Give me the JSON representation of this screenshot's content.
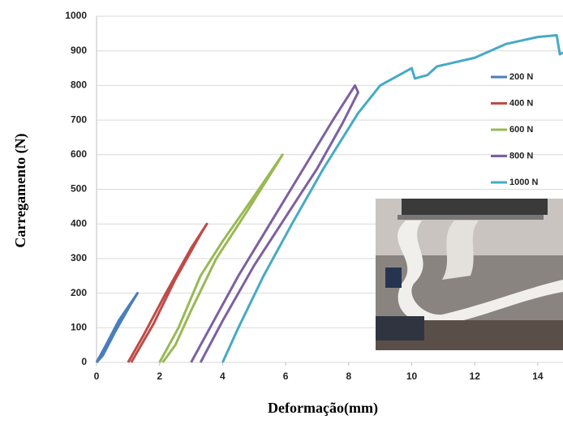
{
  "chart_data": {
    "type": "line",
    "x_label": "Deformação(mm)",
    "y_label": "Carregamento (N)",
    "xlim": [
      0,
      14.8
    ],
    "ylim": [
      0,
      1000
    ],
    "xticks": [
      0,
      2,
      4,
      6,
      8,
      10,
      12,
      14
    ],
    "yticks": [
      0,
      100,
      200,
      300,
      400,
      500,
      600,
      700,
      800,
      900,
      1000
    ],
    "grid": true,
    "legend": "upper right",
    "series": [
      {
        "name": "200 N",
        "color": "#4a7ebb",
        "x": [
          0,
          0.3,
          0.7,
          1.3,
          1.1,
          0.6,
          0.2,
          0
        ],
        "values": [
          0,
          50,
          120,
          200,
          170,
          90,
          20,
          0
        ]
      },
      {
        "name": "400 N",
        "color": "#be4b48",
        "x": [
          1,
          1.5,
          2.2,
          3,
          3.5,
          3.3,
          2.5,
          1.8,
          1.1
        ],
        "values": [
          0,
          80,
          200,
          330,
          400,
          370,
          240,
          110,
          0
        ]
      },
      {
        "name": "600 N",
        "color": "#98b954",
        "x": [
          2,
          2.6,
          3.3,
          4,
          5,
          5.9,
          5.7,
          4.8,
          3.8,
          3,
          2.5,
          2.1
        ],
        "values": [
          0,
          100,
          250,
          350,
          480,
          600,
          570,
          440,
          300,
          150,
          50,
          0
        ]
      },
      {
        "name": "800 N",
        "color": "#7d60a0",
        "x": [
          3,
          3.6,
          4.5,
          5.5,
          6.5,
          7.5,
          8.2,
          8.3,
          7.8,
          7,
          6,
          5,
          4,
          3.3
        ],
        "values": [
          0,
          100,
          250,
          400,
          550,
          700,
          800,
          780,
          690,
          560,
          420,
          280,
          120,
          0
        ]
      },
      {
        "name": "1000 N",
        "color": "#46aac5",
        "x": [
          4,
          4.5,
          5.3,
          6.2,
          7.2,
          8.3,
          9,
          10,
          10.1,
          10.5,
          10.8,
          12,
          13,
          14,
          14.6,
          14.7,
          14.8
        ],
        "values": [
          0,
          100,
          250,
          400,
          560,
          720,
          800,
          850,
          820,
          830,
          855,
          880,
          920,
          940,
          945,
          890,
          895
        ]
      }
    ]
  }
}
